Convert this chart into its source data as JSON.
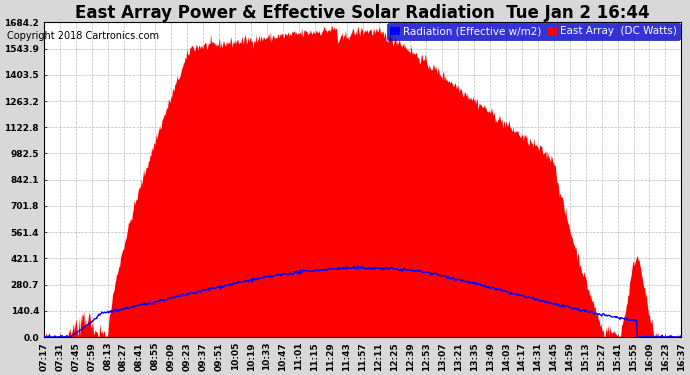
{
  "title": "East Array Power & Effective Solar Radiation  Tue Jan 2 16:44",
  "copyright": "Copyright 2018 Cartronics.com",
  "legend_labels": [
    "Radiation (Effective w/m2)",
    "East Array  (DC Watts)"
  ],
  "legend_colors": [
    "#0000ff",
    "#ff0000"
  ],
  "plot_bg_color": "#ffffff",
  "fig_bg_color": "#d8d8d8",
  "ylim": [
    0,
    1684.2
  ],
  "yticks": [
    0.0,
    140.4,
    280.7,
    421.1,
    561.4,
    701.8,
    842.1,
    982.5,
    1122.8,
    1263.2,
    1403.5,
    1543.9,
    1684.2
  ],
  "ytick_labels": [
    "0.0",
    "140.4",
    "280.7",
    "421.1",
    "561.4",
    "701.8",
    "842.1",
    "982.5",
    "1122.8",
    "1263.2",
    "1403.5",
    "1543.9",
    "1684.2"
  ],
  "xtick_labels": [
    "07:17",
    "07:31",
    "07:45",
    "07:59",
    "08:13",
    "08:27",
    "08:41",
    "08:55",
    "09:09",
    "09:23",
    "09:37",
    "09:51",
    "10:05",
    "10:19",
    "10:33",
    "10:47",
    "11:01",
    "11:15",
    "11:29",
    "11:43",
    "11:57",
    "12:11",
    "12:25",
    "12:39",
    "12:53",
    "13:07",
    "13:21",
    "13:35",
    "13:49",
    "14:03",
    "14:17",
    "14:31",
    "14:45",
    "14:59",
    "15:13",
    "15:27",
    "15:41",
    "15:55",
    "16:09",
    "16:23",
    "16:37"
  ],
  "title_fontsize": 12,
  "copyright_fontsize": 7,
  "tick_fontsize": 6.5,
  "legend_fontsize": 7.5
}
